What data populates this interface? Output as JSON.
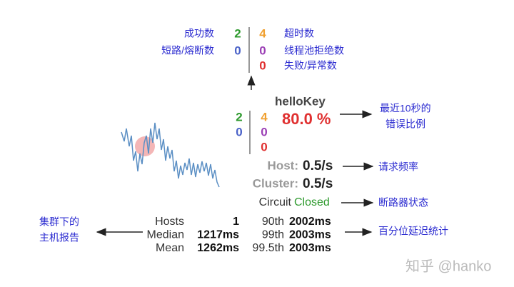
{
  "legend": {
    "left_labels": [
      "成功数",
      "短路/熔断数"
    ],
    "left_counts": [
      "2",
      "0"
    ],
    "right_counts": [
      "4",
      "0",
      "0"
    ],
    "right_labels": [
      "超时数",
      "线程池拒绝数",
      "失败/异常数"
    ]
  },
  "circuit": {
    "name": "helloKey",
    "left_counts": [
      "2",
      "0"
    ],
    "right_counts": [
      "4",
      "0",
      "0"
    ],
    "error_rate": "80.0 %",
    "host_label": "Host:",
    "host_rate": "0.5/s",
    "cluster_label": "Cluster:",
    "cluster_rate": "0.5/s",
    "circuit_label": "Circuit",
    "circuit_status": "Closed"
  },
  "stats": {
    "rows": [
      [
        "Hosts",
        "1",
        "90th",
        "2002ms"
      ],
      [
        "Median",
        "1217ms",
        "99th",
        "2003ms"
      ],
      [
        "Mean",
        "1262ms",
        "99.5th",
        "2003ms"
      ]
    ]
  },
  "annotations": {
    "error_rate": [
      "最近10秒的",
      "错误比例"
    ],
    "request_rate": "请求频率",
    "circuit_state": "断路器状态",
    "percentiles": "百分位延迟统计",
    "cluster_hosts": [
      "集群下的",
      "主机报告"
    ]
  },
  "watermark": "知乎 @hanko"
}
